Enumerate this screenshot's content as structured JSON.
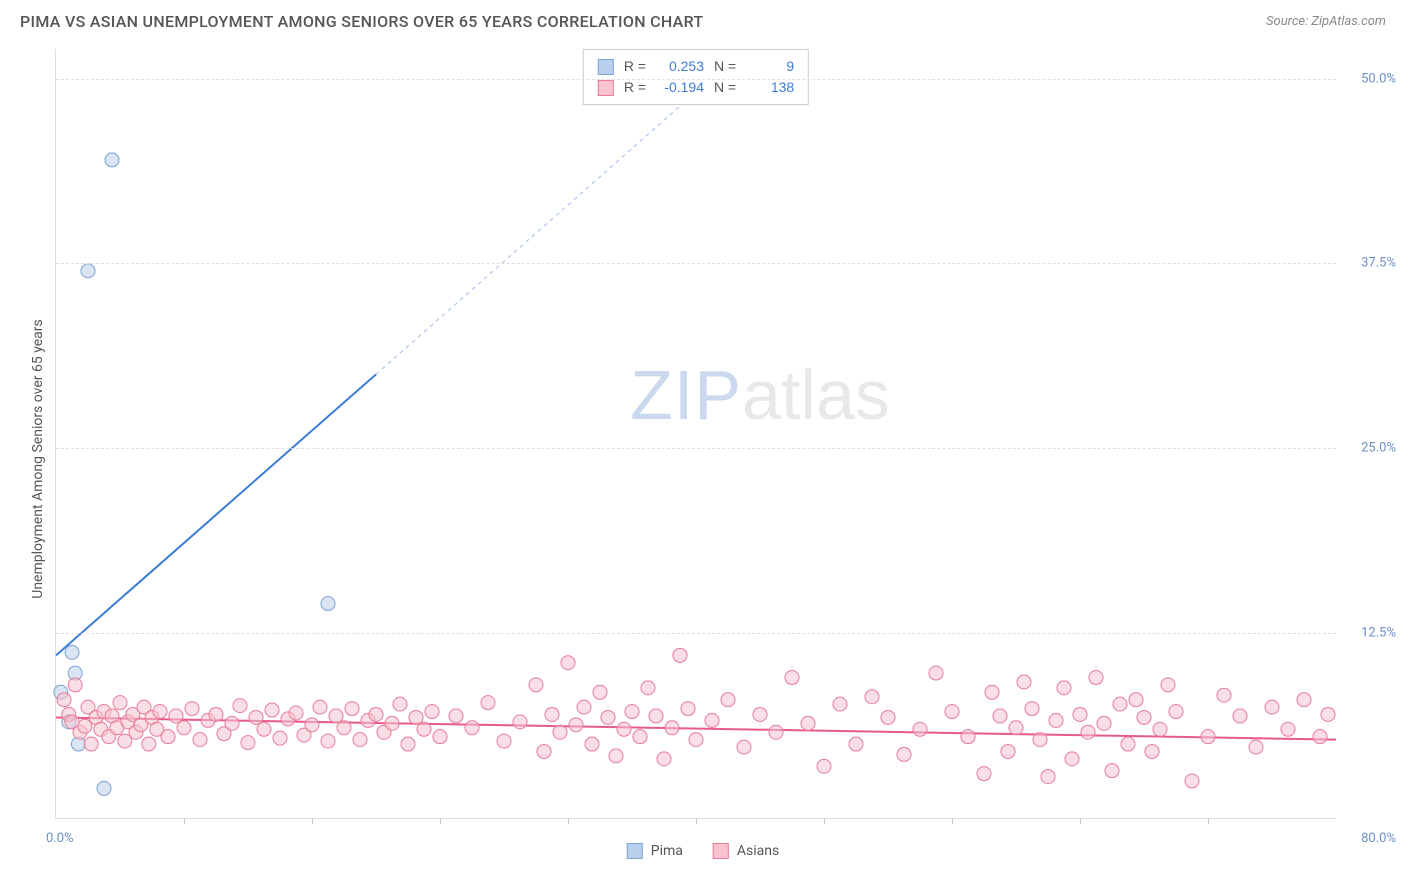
{
  "title": "PIMA VS ASIAN UNEMPLOYMENT AMONG SENIORS OVER 65 YEARS CORRELATION CHART",
  "source": "Source: ZipAtlas.com",
  "ylabel": "Unemployment Among Seniors over 65 years",
  "watermark_a": "ZIP",
  "watermark_b": "atlas",
  "chart": {
    "type": "scatter",
    "xlim": [
      0,
      80
    ],
    "ylim": [
      0,
      52
    ],
    "xlabel_min": "0.0%",
    "xlabel_max": "80.0%",
    "yticks": [
      {
        "v": 12.5,
        "label": "12.5%"
      },
      {
        "v": 25.0,
        "label": "25.0%"
      },
      {
        "v": 37.5,
        "label": "37.5%"
      },
      {
        "v": 50.0,
        "label": "50.0%"
      }
    ],
    "xtick_step": 8,
    "background_color": "#ffffff",
    "grid_color": "#e0e0e0",
    "marker_radius": 7,
    "marker_opacity": 0.55,
    "series": [
      {
        "name": "Pima",
        "color_fill": "#b9d0ec",
        "color_stroke": "#7da3d4",
        "R": "0.253",
        "N": "9",
        "trend": {
          "x1": 0,
          "y1": 11.0,
          "x2": 20,
          "y2": 30.0,
          "dashed_extend_to_x": 42,
          "dashed_extend_to_y": 51.0,
          "color": "#3b7dd8",
          "width": 2
        },
        "points": [
          {
            "x": 3.5,
            "y": 44.5
          },
          {
            "x": 2.0,
            "y": 37.0
          },
          {
            "x": 1.0,
            "y": 11.2
          },
          {
            "x": 1.2,
            "y": 9.8
          },
          {
            "x": 0.3,
            "y": 8.5
          },
          {
            "x": 0.8,
            "y": 6.5
          },
          {
            "x": 1.4,
            "y": 5.0
          },
          {
            "x": 3.0,
            "y": 2.0
          },
          {
            "x": 17.0,
            "y": 14.5
          }
        ]
      },
      {
        "name": "Asians",
        "color_fill": "#f6c3cf",
        "color_stroke": "#e87b9a",
        "R": "-0.194",
        "N": "138",
        "trend": {
          "x1": 0,
          "y1": 6.8,
          "x2": 80,
          "y2": 5.3,
          "color": "#e85a8a",
          "width": 2
        },
        "points": [
          {
            "x": 0.5,
            "y": 8.0
          },
          {
            "x": 0.8,
            "y": 7.0
          },
          {
            "x": 1.0,
            "y": 6.5
          },
          {
            "x": 1.2,
            "y": 9.0
          },
          {
            "x": 1.5,
            "y": 5.8
          },
          {
            "x": 1.8,
            "y": 6.2
          },
          {
            "x": 2.0,
            "y": 7.5
          },
          {
            "x": 2.2,
            "y": 5.0
          },
          {
            "x": 2.5,
            "y": 6.8
          },
          {
            "x": 2.8,
            "y": 6.0
          },
          {
            "x": 3.0,
            "y": 7.2
          },
          {
            "x": 3.3,
            "y": 5.5
          },
          {
            "x": 3.5,
            "y": 6.9
          },
          {
            "x": 3.8,
            "y": 6.1
          },
          {
            "x": 4.0,
            "y": 7.8
          },
          {
            "x": 4.3,
            "y": 5.2
          },
          {
            "x": 4.5,
            "y": 6.5
          },
          {
            "x": 4.8,
            "y": 7.0
          },
          {
            "x": 5.0,
            "y": 5.8
          },
          {
            "x": 5.3,
            "y": 6.3
          },
          {
            "x": 5.5,
            "y": 7.5
          },
          {
            "x": 5.8,
            "y": 5.0
          },
          {
            "x": 6.0,
            "y": 6.8
          },
          {
            "x": 6.3,
            "y": 6.0
          },
          {
            "x": 6.5,
            "y": 7.2
          },
          {
            "x": 7.0,
            "y": 5.5
          },
          {
            "x": 7.5,
            "y": 6.9
          },
          {
            "x": 8.0,
            "y": 6.1
          },
          {
            "x": 8.5,
            "y": 7.4
          },
          {
            "x": 9.0,
            "y": 5.3
          },
          {
            "x": 9.5,
            "y": 6.6
          },
          {
            "x": 10.0,
            "y": 7.0
          },
          {
            "x": 10.5,
            "y": 5.7
          },
          {
            "x": 11.0,
            "y": 6.4
          },
          {
            "x": 11.5,
            "y": 7.6
          },
          {
            "x": 12.0,
            "y": 5.1
          },
          {
            "x": 12.5,
            "y": 6.8
          },
          {
            "x": 13.0,
            "y": 6.0
          },
          {
            "x": 13.5,
            "y": 7.3
          },
          {
            "x": 14.0,
            "y": 5.4
          },
          {
            "x": 14.5,
            "y": 6.7
          },
          {
            "x": 15.0,
            "y": 7.1
          },
          {
            "x": 15.5,
            "y": 5.6
          },
          {
            "x": 16.0,
            "y": 6.3
          },
          {
            "x": 16.5,
            "y": 7.5
          },
          {
            "x": 17.0,
            "y": 5.2
          },
          {
            "x": 17.5,
            "y": 6.9
          },
          {
            "x": 18.0,
            "y": 6.1
          },
          {
            "x": 18.5,
            "y": 7.4
          },
          {
            "x": 19.0,
            "y": 5.3
          },
          {
            "x": 19.5,
            "y": 6.6
          },
          {
            "x": 20.0,
            "y": 7.0
          },
          {
            "x": 20.5,
            "y": 5.8
          },
          {
            "x": 21.0,
            "y": 6.4
          },
          {
            "x": 21.5,
            "y": 7.7
          },
          {
            "x": 22.0,
            "y": 5.0
          },
          {
            "x": 22.5,
            "y": 6.8
          },
          {
            "x": 23.0,
            "y": 6.0
          },
          {
            "x": 23.5,
            "y": 7.2
          },
          {
            "x": 24.0,
            "y": 5.5
          },
          {
            "x": 25.0,
            "y": 6.9
          },
          {
            "x": 26.0,
            "y": 6.1
          },
          {
            "x": 27.0,
            "y": 7.8
          },
          {
            "x": 28.0,
            "y": 5.2
          },
          {
            "x": 29.0,
            "y": 6.5
          },
          {
            "x": 30.0,
            "y": 9.0
          },
          {
            "x": 30.5,
            "y": 4.5
          },
          {
            "x": 31.0,
            "y": 7.0
          },
          {
            "x": 31.5,
            "y": 5.8
          },
          {
            "x": 32.0,
            "y": 10.5
          },
          {
            "x": 32.5,
            "y": 6.3
          },
          {
            "x": 33.0,
            "y": 7.5
          },
          {
            "x": 33.5,
            "y": 5.0
          },
          {
            "x": 34.0,
            "y": 8.5
          },
          {
            "x": 34.5,
            "y": 6.8
          },
          {
            "x": 35.0,
            "y": 4.2
          },
          {
            "x": 35.5,
            "y": 6.0
          },
          {
            "x": 36.0,
            "y": 7.2
          },
          {
            "x": 36.5,
            "y": 5.5
          },
          {
            "x": 37.0,
            "y": 8.8
          },
          {
            "x": 37.5,
            "y": 6.9
          },
          {
            "x": 38.0,
            "y": 4.0
          },
          {
            "x": 38.5,
            "y": 6.1
          },
          {
            "x": 39.0,
            "y": 11.0
          },
          {
            "x": 39.5,
            "y": 7.4
          },
          {
            "x": 40.0,
            "y": 5.3
          },
          {
            "x": 41.0,
            "y": 6.6
          },
          {
            "x": 42.0,
            "y": 8.0
          },
          {
            "x": 43.0,
            "y": 4.8
          },
          {
            "x": 44.0,
            "y": 7.0
          },
          {
            "x": 45.0,
            "y": 5.8
          },
          {
            "x": 46.0,
            "y": 9.5
          },
          {
            "x": 47.0,
            "y": 6.4
          },
          {
            "x": 48.0,
            "y": 3.5
          },
          {
            "x": 49.0,
            "y": 7.7
          },
          {
            "x": 50.0,
            "y": 5.0
          },
          {
            "x": 51.0,
            "y": 8.2
          },
          {
            "x": 52.0,
            "y": 6.8
          },
          {
            "x": 53.0,
            "y": 4.3
          },
          {
            "x": 54.0,
            "y": 6.0
          },
          {
            "x": 55.0,
            "y": 9.8
          },
          {
            "x": 56.0,
            "y": 7.2
          },
          {
            "x": 57.0,
            "y": 5.5
          },
          {
            "x": 58.0,
            "y": 3.0
          },
          {
            "x": 58.5,
            "y": 8.5
          },
          {
            "x": 59.0,
            "y": 6.9
          },
          {
            "x": 59.5,
            "y": 4.5
          },
          {
            "x": 60.0,
            "y": 6.1
          },
          {
            "x": 60.5,
            "y": 9.2
          },
          {
            "x": 61.0,
            "y": 7.4
          },
          {
            "x": 61.5,
            "y": 5.3
          },
          {
            "x": 62.0,
            "y": 2.8
          },
          {
            "x": 62.5,
            "y": 6.6
          },
          {
            "x": 63.0,
            "y": 8.8
          },
          {
            "x": 63.5,
            "y": 4.0
          },
          {
            "x": 64.0,
            "y": 7.0
          },
          {
            "x": 64.5,
            "y": 5.8
          },
          {
            "x": 65.0,
            "y": 9.5
          },
          {
            "x": 65.5,
            "y": 6.4
          },
          {
            "x": 66.0,
            "y": 3.2
          },
          {
            "x": 66.5,
            "y": 7.7
          },
          {
            "x": 67.0,
            "y": 5.0
          },
          {
            "x": 67.5,
            "y": 8.0
          },
          {
            "x": 68.0,
            "y": 6.8
          },
          {
            "x": 68.5,
            "y": 4.5
          },
          {
            "x": 69.0,
            "y": 6.0
          },
          {
            "x": 69.5,
            "y": 9.0
          },
          {
            "x": 70.0,
            "y": 7.2
          },
          {
            "x": 71.0,
            "y": 2.5
          },
          {
            "x": 72.0,
            "y": 5.5
          },
          {
            "x": 73.0,
            "y": 8.3
          },
          {
            "x": 74.0,
            "y": 6.9
          },
          {
            "x": 75.0,
            "y": 4.8
          },
          {
            "x": 76.0,
            "y": 7.5
          },
          {
            "x": 77.0,
            "y": 6.0
          },
          {
            "x": 78.0,
            "y": 8.0
          },
          {
            "x": 79.0,
            "y": 5.5
          },
          {
            "x": 79.5,
            "y": 7.0
          }
        ]
      }
    ]
  },
  "legend_bottom": [
    {
      "label": "Pima",
      "fill": "#b9d0ec",
      "stroke": "#7da3d4"
    },
    {
      "label": "Asians",
      "fill": "#f6c3cf",
      "stroke": "#e87b9a"
    }
  ]
}
